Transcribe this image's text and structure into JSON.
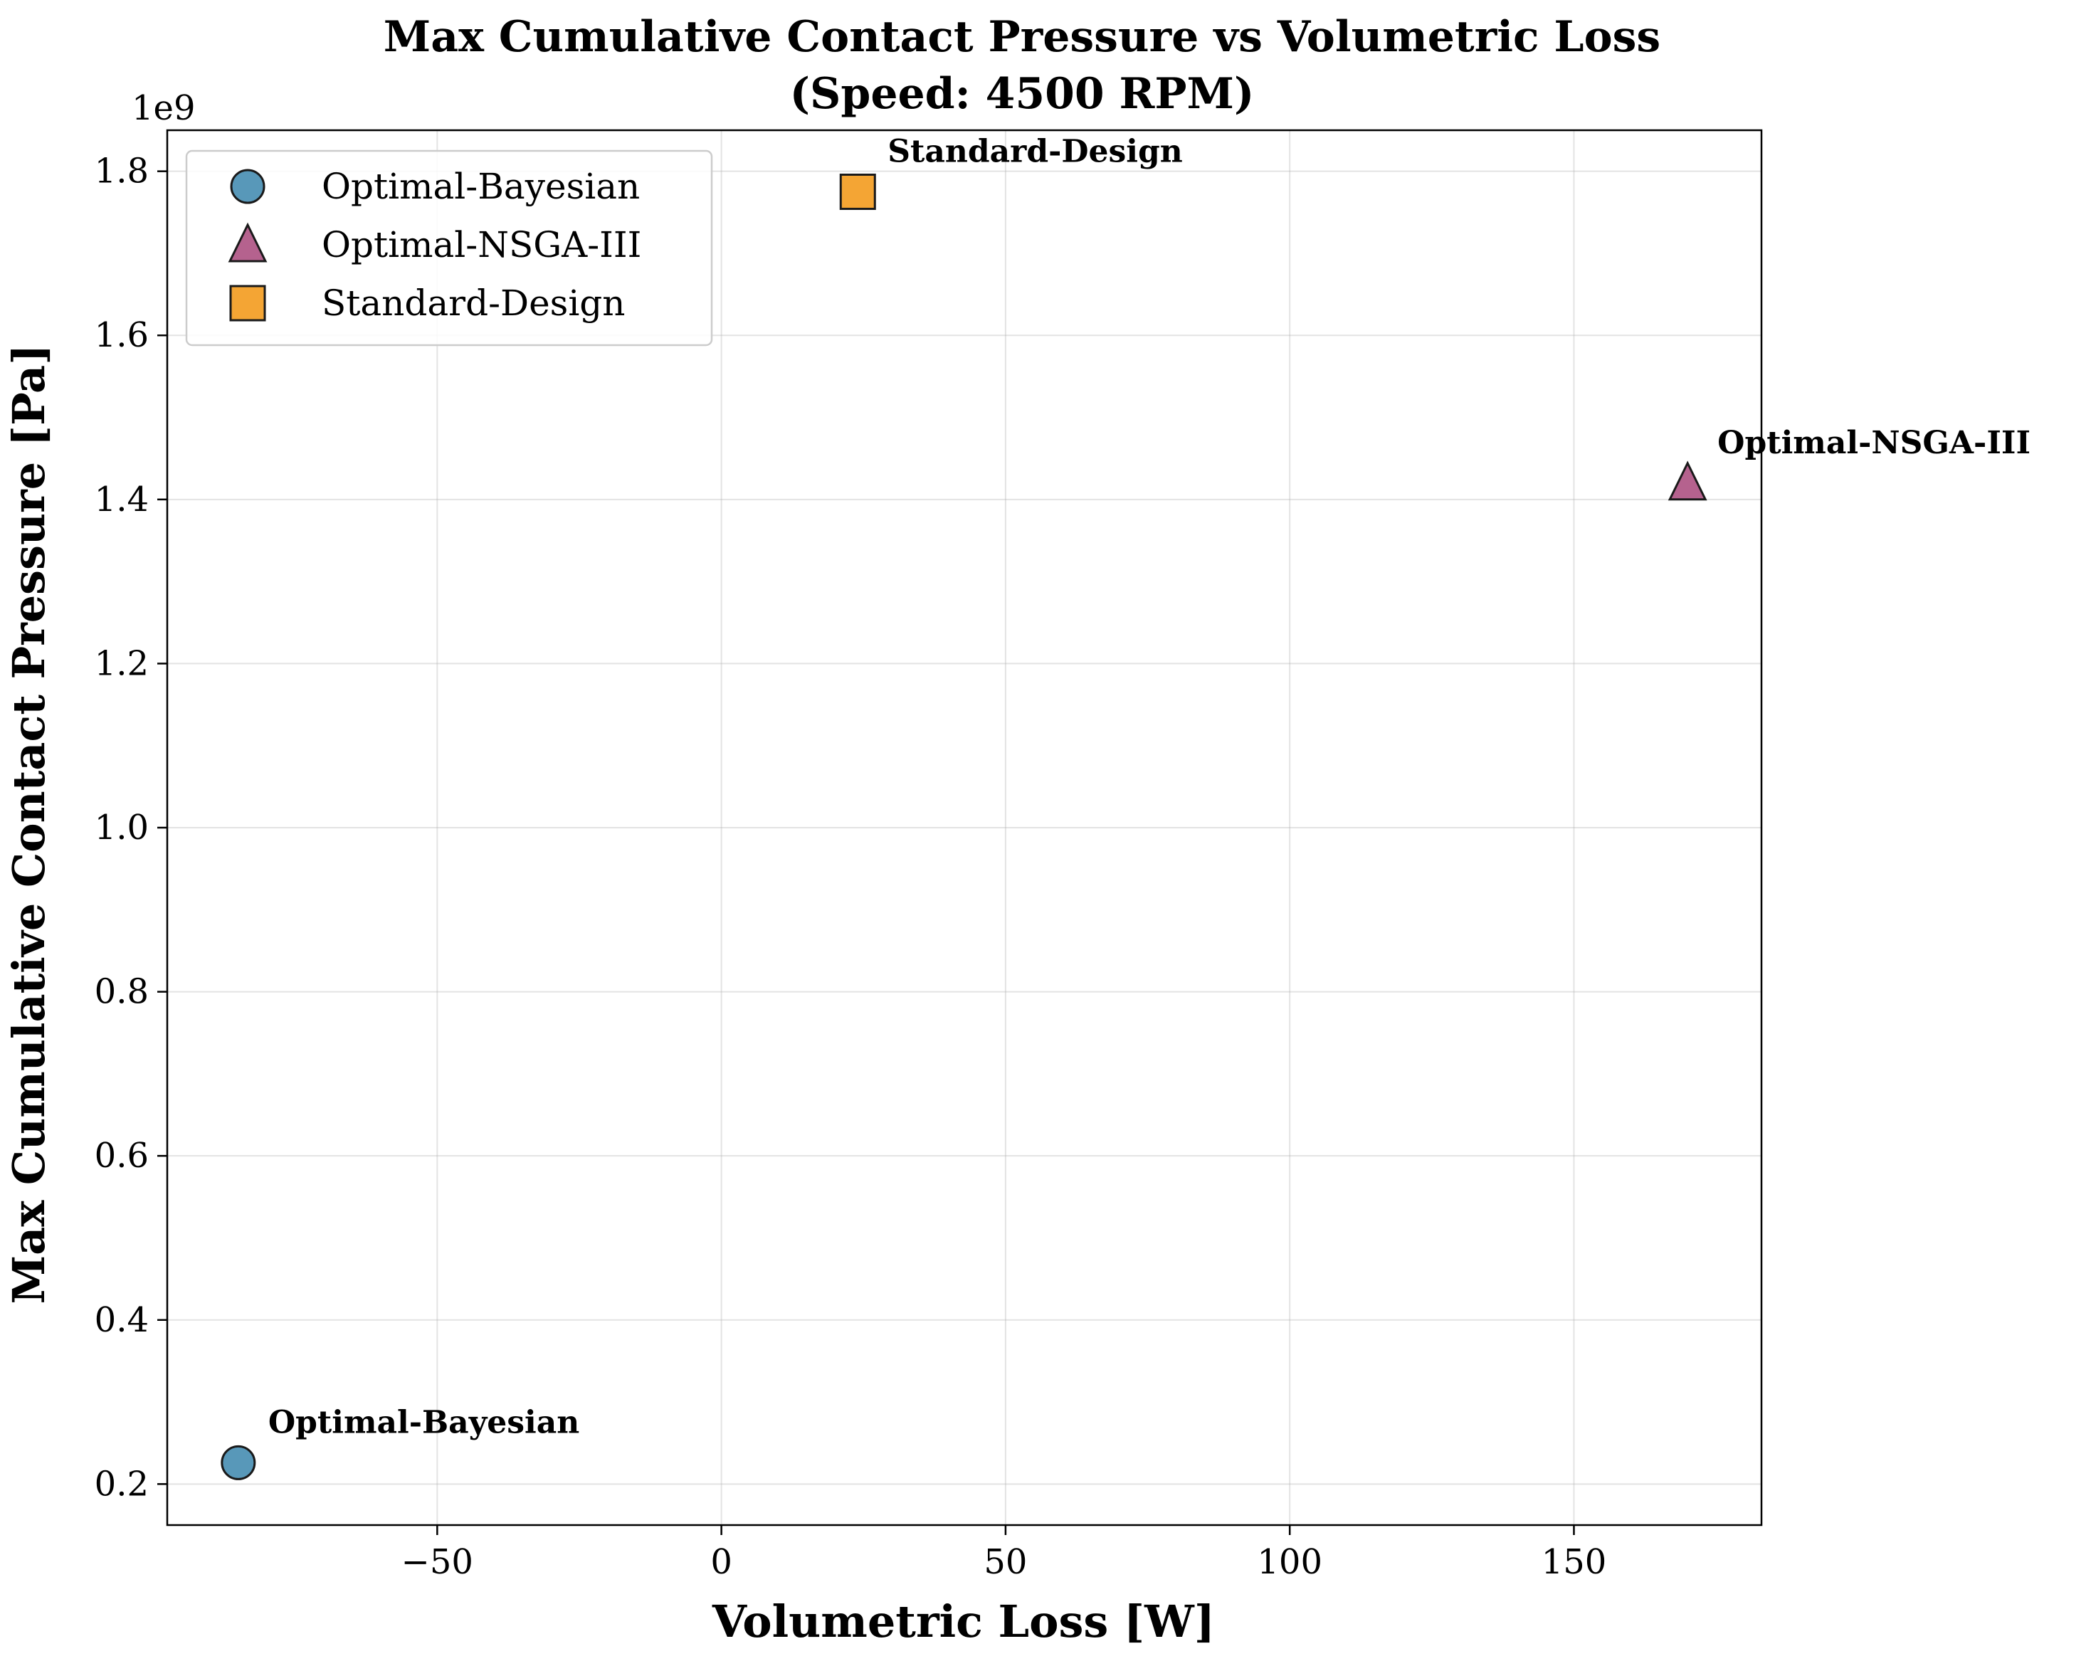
{
  "chart_data": {
    "type": "scatter",
    "title": "Max Cumulative Contact Pressure vs Volumetric Loss",
    "subtitle": "(Speed: 4500 RPM)",
    "xlabel": "Volumetric Loss [W]",
    "ylabel": "Max Cumulative Contact Pressure [Pa]",
    "y_multiplier_label": "1e9",
    "xlim": [
      -97.5,
      183.0
    ],
    "ylim": [
      0.15,
      1.85
    ],
    "y_scale_factor": 1000000000,
    "x_ticks": [
      -50,
      0,
      50,
      100,
      150
    ],
    "x_tick_labels": [
      "−50",
      "0",
      "50",
      "100",
      "150"
    ],
    "y_ticks": [
      0.2,
      0.4,
      0.6,
      0.8,
      1.0,
      1.2,
      1.4,
      1.6,
      1.8
    ],
    "y_tick_labels": [
      "0.2",
      "0.4",
      "0.6",
      "0.8",
      "1.0",
      "1.2",
      "1.4",
      "1.6",
      "1.8"
    ],
    "grid": true,
    "legend_position": "top-left",
    "series": [
      {
        "name": "Optimal-Bayesian",
        "marker": "circle",
        "color": "#2E7EA7",
        "points": [
          {
            "x": -85,
            "y": 0.226,
            "label": "Optimal-Bayesian"
          }
        ]
      },
      {
        "name": "Optimal-NSGA-III",
        "marker": "triangle",
        "color": "#A23B72",
        "points": [
          {
            "x": 170,
            "y": 1.42,
            "label": "Optimal-NSGA-III"
          }
        ]
      },
      {
        "name": "Standard-Design",
        "marker": "square",
        "color": "#F18F01",
        "points": [
          {
            "x": 24,
            "y": 1.775,
            "label": "Standard-Design"
          }
        ]
      }
    ]
  }
}
